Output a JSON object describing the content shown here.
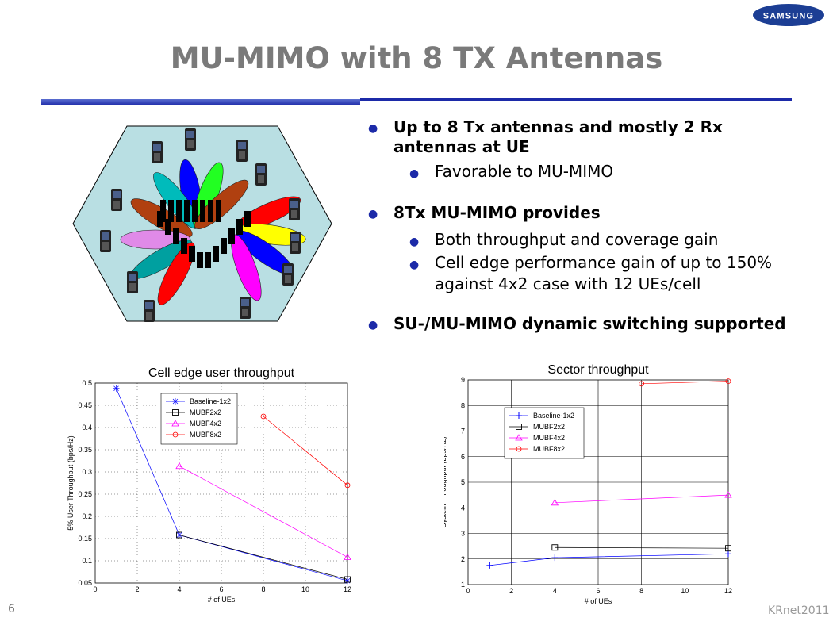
{
  "brand": {
    "logo_text": "SAMSUNG"
  },
  "title": "MU-MIMO with 8 TX Antennas",
  "bullets": [
    {
      "level": 1,
      "text": "Up to 8 Tx antennas and mostly 2 Rx antennas at UE"
    },
    {
      "level": 2,
      "text": "Favorable to MU-MIMO"
    },
    {
      "level": 1,
      "text": "8Tx MU-MIMO provides"
    },
    {
      "level": 2,
      "text": "Both throughput and coverage gain"
    },
    {
      "level": 2,
      "text": "Cell edge performance gain of up to 150% against 4x2 case with 12 UEs/cell"
    },
    {
      "level": 1,
      "text": "SU-/MU-MIMO dynamic switching supported"
    }
  ],
  "page_number": "6",
  "footer": "KRnet2011",
  "colors": {
    "accent": "#1c2aa8",
    "title": "#7a7a7a",
    "cell_fill": "#b9dfe3"
  },
  "chart_data": [
    {
      "type": "line",
      "title": "Cell edge user throughput",
      "xlabel": "# of UEs",
      "ylabel": "5% User Throughput (bps/Hz)",
      "xlim": [
        0,
        12
      ],
      "ylim": [
        0.05,
        0.5
      ],
      "xticks": [
        0,
        2,
        4,
        6,
        8,
        10,
        12
      ],
      "yticks": [
        0.05,
        0.1,
        0.15,
        0.2,
        0.25,
        0.3,
        0.35,
        0.4,
        0.45,
        0.5
      ],
      "grid": true,
      "legend": "top-center",
      "series": [
        {
          "name": "Baseline-1x2",
          "color": "#0000ff",
          "marker": "star",
          "x": [
            1,
            4,
            12
          ],
          "y": [
            0.488,
            0.158,
            0.055
          ]
        },
        {
          "name": "MUBF2x2",
          "color": "#000000",
          "marker": "square",
          "x": [
            4,
            12
          ],
          "y": [
            0.158,
            0.058
          ]
        },
        {
          "name": "MUBF4x2",
          "color": "#ff00ff",
          "marker": "triangle",
          "x": [
            4,
            12
          ],
          "y": [
            0.313,
            0.108
          ]
        },
        {
          "name": "MUBF8x2",
          "color": "#ff0000",
          "marker": "circle",
          "x": [
            8,
            12
          ],
          "y": [
            0.425,
            0.27
          ]
        }
      ]
    },
    {
      "type": "line",
      "title": "Sector throughput",
      "xlabel": "# of UEs",
      "ylabel": "System Throughput (bps/Hz)",
      "xlim": [
        0,
        12
      ],
      "ylim": [
        1,
        9
      ],
      "xticks": [
        0,
        2,
        4,
        6,
        8,
        10,
        12
      ],
      "yticks": [
        1,
        2,
        3,
        4,
        5,
        6,
        7,
        8,
        9
      ],
      "grid": true,
      "legend": "top-left",
      "series": [
        {
          "name": "Baseline-1x2",
          "color": "#0000ff",
          "marker": "plus",
          "x": [
            1,
            4,
            12
          ],
          "y": [
            1.75,
            2.05,
            2.2
          ]
        },
        {
          "name": "MUBF2x2",
          "color": "#000000",
          "marker": "square",
          "x": [
            4,
            12
          ],
          "y": [
            2.45,
            2.42
          ]
        },
        {
          "name": "MUBF4x2",
          "color": "#ff00ff",
          "marker": "triangle",
          "x": [
            4,
            12
          ],
          "y": [
            4.2,
            4.5
          ]
        },
        {
          "name": "MUBF8x2",
          "color": "#ff0000",
          "marker": "circle",
          "x": [
            8,
            12
          ],
          "y": [
            8.85,
            8.95
          ]
        }
      ]
    }
  ]
}
